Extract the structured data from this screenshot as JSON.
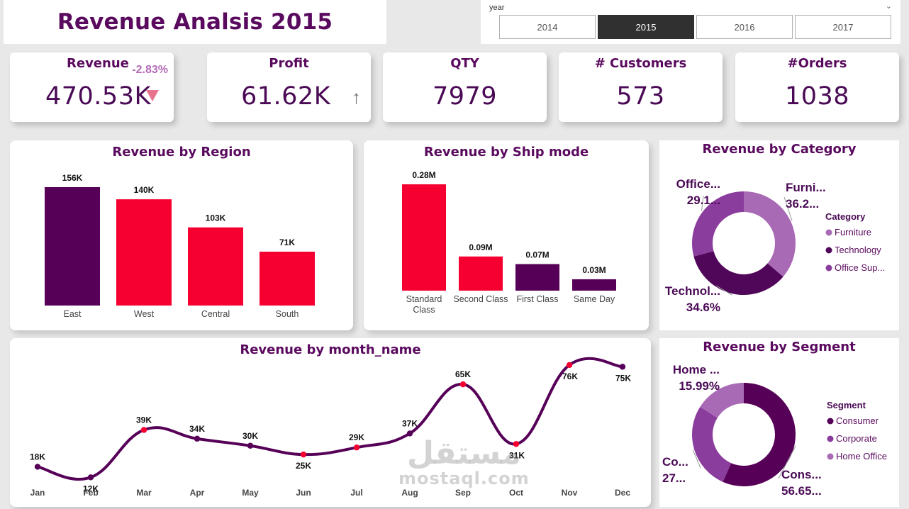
{
  "title": "Revenue Analsis 2015",
  "slicer": {
    "label": "year",
    "options": [
      "2014",
      "2015",
      "2016",
      "2017"
    ],
    "selected": "2015"
  },
  "kpis": {
    "revenue": {
      "title": "Revenue",
      "value": "470.53K",
      "delta": "-2.83%"
    },
    "profit": {
      "title": "Profit",
      "value": "61.62K"
    },
    "qty": {
      "title": "QTY",
      "value": "7979"
    },
    "customers": {
      "title": "# Customers",
      "value": "573"
    },
    "orders": {
      "title": "#Orders",
      "value": "1038"
    }
  },
  "colors": {
    "purple": "#560058",
    "red": "#f50031",
    "title": "#5a0a5e",
    "furniture": "#a96ab5",
    "technology": "#50075a",
    "office": "#8a3d9c",
    "consumer": "#560058",
    "corporate": "#8a3d9c",
    "home_office": "#a96ab5"
  },
  "chart_data": [
    {
      "type": "bar",
      "title": "Revenue by Region",
      "categories": [
        "East",
        "West",
        "Central",
        "South"
      ],
      "values": [
        156,
        140,
        103,
        71
      ],
      "labels": [
        "156K",
        "140K",
        "103K",
        "71K"
      ],
      "colors": [
        "#560058",
        "#f50031",
        "#f50031",
        "#f50031"
      ],
      "ylim": [
        0,
        156
      ]
    },
    {
      "type": "bar",
      "title": "Revenue by Ship mode",
      "categories": [
        "Standard Class",
        "Second Class",
        "First Class",
        "Same Day"
      ],
      "category_lines": [
        [
          "Standard",
          "Class"
        ],
        [
          "Second Class"
        ],
        [
          "First Class"
        ],
        [
          "Same Day"
        ]
      ],
      "values": [
        0.28,
        0.09,
        0.07,
        0.03
      ],
      "labels": [
        "0.28M",
        "0.09M",
        "0.07M",
        "0.03M"
      ],
      "colors": [
        "#f50031",
        "#f50031",
        "#560058",
        "#560058"
      ],
      "ylim": [
        0,
        0.28
      ]
    },
    {
      "type": "pie",
      "title": "Revenue by Category",
      "legend_title": "Category",
      "legend": [
        "Furniture",
        "Technology",
        "Office Sup..."
      ],
      "slices": [
        {
          "name": "Furniture",
          "value": 36.2,
          "label_name": "Furni...",
          "label_value": "36.2...",
          "color": "#a96ab5"
        },
        {
          "name": "Technology",
          "value": 34.6,
          "label_name": "Technol...",
          "label_value": "34.6%",
          "color": "#50075a"
        },
        {
          "name": "Office Supplies",
          "value": 29.1,
          "label_name": "Office...",
          "label_value": "29.1...",
          "color": "#8a3d9c"
        }
      ]
    },
    {
      "type": "line",
      "title": "Revenue by month_name",
      "x": [
        "Jan",
        "Feb",
        "Mar",
        "Apr",
        "May",
        "Jun",
        "Jul",
        "Aug",
        "Sep",
        "Oct",
        "Nov",
        "Dec"
      ],
      "y": [
        18,
        12,
        39,
        34,
        30,
        25,
        29,
        37,
        65,
        31,
        76,
        75
      ],
      "labels": [
        "18K",
        "12K",
        "39K",
        "34K",
        "30K",
        "25K",
        "29K",
        "37K",
        "65K",
        "31K",
        "76K",
        "75K"
      ],
      "highlight": [
        false,
        false,
        true,
        false,
        false,
        true,
        true,
        false,
        true,
        true,
        true,
        false
      ],
      "ylim": [
        0,
        80
      ]
    },
    {
      "type": "pie",
      "title": "Revenue by Segment",
      "legend_title": "Segment",
      "legend": [
        "Consumer",
        "Corporate",
        "Home Office"
      ],
      "slices": [
        {
          "name": "Consumer",
          "value": 56.65,
          "label_name": "Cons...",
          "label_value": "56.65...",
          "color": "#560058"
        },
        {
          "name": "Corporate",
          "value": 27.36,
          "label_name": "Co...",
          "label_value": "27...",
          "color": "#8a3d9c"
        },
        {
          "name": "Home Office",
          "value": 15.99,
          "label_name": "Home ...",
          "label_value": "15.99%",
          "color": "#a96ab5"
        }
      ]
    }
  ],
  "watermark": {
    "arabic": "مستقل",
    "latin": "mostaql.com"
  }
}
